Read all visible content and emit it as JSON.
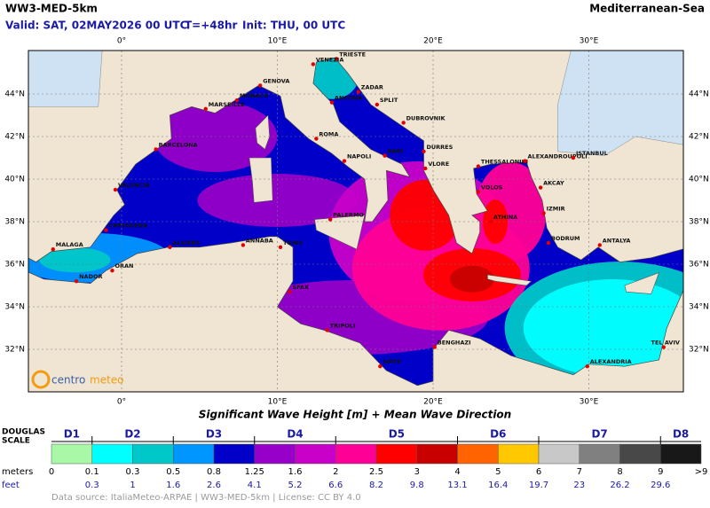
{
  "header": {
    "title": "WW3-MED-5km",
    "region": "Mediterranean-Sea",
    "valid": "Valid: SAT, 02MAY2026 00 UTC",
    "step": "T=+48hr",
    "init": "Init: THU, 00 UTC"
  },
  "map": {
    "lon_labels": [
      "0°",
      "10°E",
      "20°E",
      "30°E"
    ],
    "lat_labels": [
      "44°N",
      "42°N",
      "40°N",
      "38°N",
      "36°N",
      "34°N",
      "32°N"
    ],
    "cities": [
      {
        "name": "TRIESTE"
      },
      {
        "name": "VENEZIA"
      },
      {
        "name": "ZADAR"
      },
      {
        "name": "GENOVA"
      },
      {
        "name": "MONACO"
      },
      {
        "name": "MARSEILLE"
      },
      {
        "name": "ANCONA"
      },
      {
        "name": "SPLIT"
      },
      {
        "name": "DUBROVNIK"
      },
      {
        "name": "ROMA"
      },
      {
        "name": "BARCELONA"
      },
      {
        "name": "NAPOLI"
      },
      {
        "name": "BARI"
      },
      {
        "name": "DURRES"
      },
      {
        "name": "VLORE"
      },
      {
        "name": "THESSALONIKI"
      },
      {
        "name": "ALEXANDROUPOLI"
      },
      {
        "name": "ISTANBUL"
      },
      {
        "name": "VALENCIA"
      },
      {
        "name": "VOLOS"
      },
      {
        "name": "AKCAY"
      },
      {
        "name": "IZMIR"
      },
      {
        "name": "PALERMO"
      },
      {
        "name": "ATHINA"
      },
      {
        "name": "CARTAGENA"
      },
      {
        "name": "ALGIERS"
      },
      {
        "name": "ANNABA"
      },
      {
        "name": "TUNIS"
      },
      {
        "name": "BODRUM"
      },
      {
        "name": "ANTALYA"
      },
      {
        "name": "MALAGA"
      },
      {
        "name": "ORAN"
      },
      {
        "name": "NADOR"
      },
      {
        "name": "SFAX"
      },
      {
        "name": "TRIPOLI"
      },
      {
        "name": "BENGHAZI"
      },
      {
        "name": "SIRTE"
      },
      {
        "name": "ALEXANDRIA"
      },
      {
        "name": "TEL AVIV"
      }
    ],
    "logo": {
      "left": "centro",
      "right": "meteo"
    }
  },
  "caption": "Significant Wave Height [m]  +  Mean Wave Direction",
  "legend": {
    "douglas_label": [
      "DOUGLAS",
      "SCALE"
    ],
    "douglas": [
      "D1",
      "D2",
      "D3",
      "D4",
      "D5",
      "D6",
      "D7",
      "D8"
    ],
    "meters_label": "meters",
    "feet_label": "feet",
    "meters": [
      "0",
      "0.1",
      "0.3",
      "0.5",
      "0.8",
      "1.25",
      "1.6",
      "2",
      "2.5",
      "3",
      "4",
      "5",
      "6",
      "7",
      "8",
      "9",
      ">9"
    ],
    "feet": [
      "0.3",
      "1",
      "1.6",
      "2.6",
      "4.1",
      "5.2",
      "6.6",
      "8.2",
      "9.8",
      "13.1",
      "16.4",
      "19.7",
      "23",
      "26.2",
      "29.6"
    ],
    "colors": [
      "#a8f8a8",
      "#00ffff",
      "#00c8c8",
      "#0096ff",
      "#0000c8",
      "#9600c8",
      "#c800c8",
      "#ff0096",
      "#ff0000",
      "#c80000",
      "#ff6400",
      "#ffc800",
      "#c8c8c8",
      "#808080",
      "#484848",
      "#181818"
    ]
  },
  "source": "Data source: ItaliaMeteo-ARPAE | WW3-MED-5km | License: CC BY 4.0"
}
